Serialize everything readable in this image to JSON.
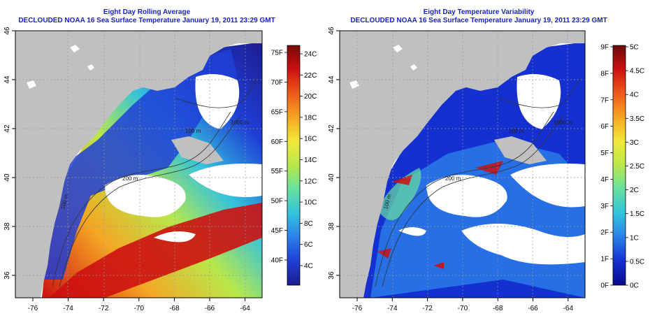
{
  "panels": [
    {
      "title": "Eight Day Rolling Average",
      "subtitle": "DECLOUDED NOAA 16 Sea Surface Temperature January 19, 2011 23:29 GMT",
      "x_ticks": [
        "-76",
        "-74",
        "-72",
        "-70",
        "-68",
        "-66",
        "-64"
      ],
      "y_ticks": [
        "36",
        "38",
        "40",
        "42",
        "44",
        "46"
      ],
      "colorbar_left_labels": [
        "40F",
        "45F",
        "50F",
        "55F",
        "60F",
        "65F",
        "70F",
        "75F"
      ],
      "colorbar_right_labels": [
        "4C",
        "6C",
        "8C",
        "10C",
        "12C",
        "14C",
        "16C",
        "18C",
        "20C",
        "22C",
        "24C"
      ],
      "contour_labels": [
        "100 m",
        "1000 m",
        "200 m",
        "100 m"
      ]
    },
    {
      "title": "Eight Day Temperature Variability",
      "subtitle": "DECLOUDED NOAA 16 Sea Surface Temperature January 19, 2011 23:29 GMT",
      "x_ticks": [
        "-76",
        "-74",
        "-72",
        "-70",
        "-68",
        "-66",
        "-64"
      ],
      "y_ticks": [
        "36",
        "38",
        "40",
        "42",
        "44",
        "46"
      ],
      "colorbar_left_labels": [
        "0F",
        "1F",
        "2F",
        "3F",
        "4F",
        "5F",
        "6F",
        "7F",
        "8F",
        "9F"
      ],
      "colorbar_right_labels": [
        "0C",
        "0.5C",
        "1C",
        "1.5C",
        "2C",
        "2.5C",
        "3C",
        "3.5C",
        "4C",
        "4.5C",
        "5C"
      ],
      "contour_labels": [
        "100 m",
        "1000 m",
        "200 m",
        "100 m"
      ]
    }
  ],
  "map_extent": {
    "lon": [
      -77,
      -63
    ],
    "lat": [
      35,
      46
    ]
  },
  "colors": {
    "land": "#c0c0c0",
    "cloud": "#ffffff",
    "title": "#1a22c8",
    "temperature_scale": [
      "#1c1c8e",
      "#1f3fd6",
      "#2a7fe8",
      "#33c3dc",
      "#66e0a0",
      "#b8e84a",
      "#f2e83a",
      "#f5a623",
      "#ee5a1a",
      "#cc1111",
      "#7a0a0a"
    ],
    "variability_scale": [
      "#0a0a8c",
      "#1430d0",
      "#2a7fe8",
      "#33c3dc",
      "#66e0a0",
      "#b8e84a",
      "#f2e83a",
      "#f5a623",
      "#ee5a1a",
      "#cc1111",
      "#6a0a0a"
    ]
  }
}
